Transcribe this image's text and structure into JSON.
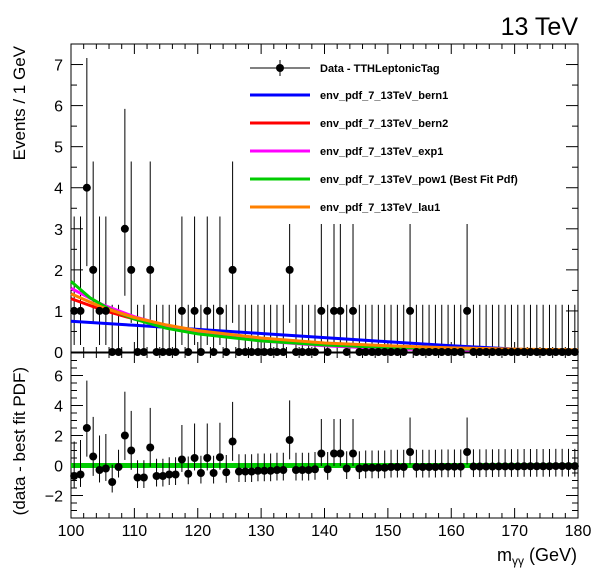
{
  "energy_label": "13 TeV",
  "chart_data": {
    "type": "scatter",
    "xlabel": "m",
    "xlabel_sub": "γγ",
    "xlabel_unit": "(GeV)",
    "xlim": [
      100,
      180
    ],
    "x_ticks": [
      "100",
      "110",
      "120",
      "130",
      "140",
      "150",
      "160",
      "170",
      "180"
    ],
    "x_tick_values": [
      100,
      110,
      120,
      130,
      140,
      150,
      160,
      170,
      180
    ],
    "top_panel": {
      "ylabel": "Events / 1 GeV",
      "ylim": [
        0,
        7.5
      ],
      "y_ticks": [
        "0",
        "1",
        "2",
        "3",
        "4",
        "5",
        "6",
        "7"
      ],
      "y_tick_values": [
        0,
        1,
        2,
        3,
        4,
        5,
        6,
        7
      ],
      "data_series": {
        "name": "Data - TTHLeptonicTag",
        "x": [
          100.5,
          101.5,
          102.5,
          103.5,
          104.5,
          105.5,
          106.5,
          107.5,
          108.5,
          109.5,
          110.5,
          111.5,
          112.5,
          113.5,
          114.5,
          115.5,
          116.5,
          117.5,
          118.5,
          119.5,
          120.5,
          121.5,
          122.5,
          123.5,
          124.5,
          125.5,
          126.5,
          127.5,
          128.5,
          129.5,
          130.5,
          131.5,
          132.5,
          133.5,
          134.5,
          135.5,
          136.5,
          137.5,
          138.5,
          139.5,
          140.5,
          141.5,
          142.5,
          143.5,
          144.5,
          145.5,
          146.5,
          147.5,
          148.5,
          149.5,
          150.5,
          151.5,
          152.5,
          153.5,
          154.5,
          155.5,
          156.5,
          157.5,
          158.5,
          159.5,
          160.5,
          161.5,
          162.5,
          163.5,
          164.5,
          165.5,
          166.5,
          167.5,
          168.5,
          169.5,
          170.5,
          171.5,
          172.5,
          173.5,
          174.5,
          175.5,
          176.5,
          177.5,
          178.5,
          179.5
        ],
        "y": [
          1,
          1,
          4,
          2,
          1,
          1,
          0,
          0,
          3,
          2,
          0,
          0,
          2,
          0,
          0,
          0,
          0,
          1,
          0,
          1,
          0,
          1,
          0,
          1,
          0,
          2,
          0,
          0,
          0,
          0,
          0,
          0,
          0,
          0,
          2,
          0,
          0,
          0,
          0,
          1,
          0,
          1,
          1,
          0,
          1,
          0,
          0,
          0,
          0,
          0,
          0,
          0,
          0,
          1,
          0,
          0,
          0,
          0,
          0,
          0,
          0,
          0,
          1,
          0,
          0,
          0,
          0,
          0,
          0,
          0,
          0,
          0,
          0,
          0,
          0,
          0,
          0,
          0,
          0,
          0
        ],
        "y_err_up": [
          2.3,
          2.3,
          3.16,
          2.64,
          2.3,
          2.3,
          1.15,
          1.15,
          2.92,
          2.64,
          1.15,
          1.15,
          2.64,
          1.15,
          1.15,
          1.15,
          1.15,
          2.3,
          1.15,
          2.3,
          1.15,
          2.3,
          1.15,
          2.3,
          1.15,
          2.64,
          1.15,
          1.15,
          1.15,
          1.15,
          1.15,
          1.15,
          1.15,
          1.15,
          2.64,
          1.15,
          1.15,
          1.15,
          1.15,
          2.3,
          1.15,
          2.3,
          2.3,
          1.15,
          2.3,
          1.15,
          1.15,
          1.15,
          1.15,
          1.15,
          1.15,
          1.15,
          1.15,
          2.3,
          1.15,
          1.15,
          1.15,
          1.15,
          1.15,
          1.15,
          1.15,
          1.15,
          2.3,
          1.15,
          1.15,
          1.15,
          1.15,
          1.15,
          1.15,
          1.15,
          1.15,
          1.15,
          1.15,
          1.15,
          1.15,
          1.15,
          1.15,
          1.15,
          1.15,
          1.15
        ],
        "y_err_down": [
          0.83,
          0.83,
          1.91,
          1.29,
          0.83,
          0.83,
          0,
          0,
          1.63,
          1.29,
          0,
          0,
          1.29,
          0,
          0,
          0,
          0,
          0.83,
          0,
          0.83,
          0,
          0.83,
          0,
          0.83,
          0,
          1.29,
          0,
          0,
          0,
          0,
          0,
          0,
          0,
          0,
          1.29,
          0,
          0,
          0,
          0,
          0.83,
          0,
          0.83,
          0.83,
          0,
          0.83,
          0,
          0,
          0,
          0,
          0,
          0,
          0,
          0,
          0.83,
          0,
          0,
          0,
          0,
          0,
          0,
          0,
          0,
          0.83,
          0,
          0,
          0,
          0,
          0,
          0,
          0,
          0,
          0,
          0,
          0,
          0,
          0,
          0,
          0,
          0,
          0
        ]
      },
      "fit_series": [
        {
          "name": "env_pdf_7_13TeV_bern1",
          "color": "#0000ff",
          "x": [
            100,
            110,
            120,
            130,
            140,
            150,
            160,
            170,
            180
          ],
          "y": [
            0.75,
            0.65,
            0.55,
            0.45,
            0.35,
            0.25,
            0.15,
            0.07,
            0.02
          ]
        },
        {
          "name": "env_pdf_7_13TeV_bern2",
          "color": "#ff0000",
          "x": [
            100,
            105,
            110,
            115,
            120,
            130,
            140,
            150,
            160,
            170,
            180
          ],
          "y": [
            1.3,
            1.02,
            0.8,
            0.63,
            0.5,
            0.32,
            0.2,
            0.12,
            0.07,
            0.04,
            0.02
          ]
        },
        {
          "name": "env_pdf_7_13TeV_exp1",
          "color": "#ff00ff",
          "x": [
            100,
            105,
            110,
            115,
            120,
            130,
            140,
            150,
            160,
            170,
            180
          ],
          "y": [
            1.55,
            1.15,
            0.86,
            0.64,
            0.48,
            0.27,
            0.15,
            0.08,
            0.05,
            0.03,
            0.01
          ]
        },
        {
          "name": "env_pdf_7_13TeV_pow1 (Best Fit Pdf)",
          "color": "#00cc00",
          "x": [
            100,
            103,
            106,
            110,
            115,
            120,
            130,
            140,
            150,
            160,
            170,
            180
          ],
          "y": [
            1.72,
            1.32,
            1.05,
            0.8,
            0.58,
            0.44,
            0.27,
            0.17,
            0.11,
            0.08,
            0.05,
            0.04
          ]
        },
        {
          "name": "env_pdf_7_13TeV_lau1",
          "color": "#ff8000",
          "x": [
            100,
            105,
            110,
            115,
            120,
            130,
            140,
            150,
            160,
            170,
            180
          ],
          "y": [
            1.42,
            1.08,
            0.84,
            0.66,
            0.52,
            0.34,
            0.22,
            0.15,
            0.1,
            0.07,
            0.05
          ]
        }
      ]
    },
    "bottom_panel": {
      "ylabel": "(data - best fit PDF)",
      "ylim": [
        -3.5,
        7.5
      ],
      "y_ticks": [
        "−2",
        "0",
        "2",
        "4",
        "6"
      ],
      "y_tick_values": [
        -2,
        0,
        2,
        4,
        6
      ],
      "residual_y": [
        -0.7,
        -0.6,
        2.5,
        0.6,
        -0.3,
        -0.2,
        -1.1,
        -0.1,
        2.0,
        1.0,
        -0.8,
        -0.8,
        1.2,
        -0.7,
        -0.7,
        -0.6,
        -0.6,
        0.4,
        -0.55,
        0.5,
        -0.5,
        0.5,
        -0.5,
        0.55,
        -0.45,
        1.6,
        -0.4,
        -0.4,
        -0.4,
        -0.35,
        -0.35,
        -0.35,
        -0.3,
        -0.3,
        1.7,
        -0.3,
        -0.3,
        -0.3,
        -0.25,
        0.8,
        -0.25,
        0.8,
        0.8,
        -0.2,
        0.8,
        -0.2,
        -0.15,
        -0.15,
        -0.15,
        -0.15,
        -0.1,
        -0.1,
        -0.1,
        0.9,
        -0.1,
        -0.1,
        -0.1,
        -0.1,
        -0.08,
        -0.08,
        -0.08,
        -0.08,
        0.9,
        -0.07,
        -0.07,
        -0.07,
        -0.07,
        -0.06,
        -0.06,
        -0.06,
        -0.06,
        -0.05,
        -0.05,
        -0.05,
        -0.05,
        -0.05,
        -0.04,
        -0.04,
        -0.04,
        -0.04
      ],
      "best_fit_band_color": "#00cc00"
    },
    "legend_position": "top-right"
  }
}
